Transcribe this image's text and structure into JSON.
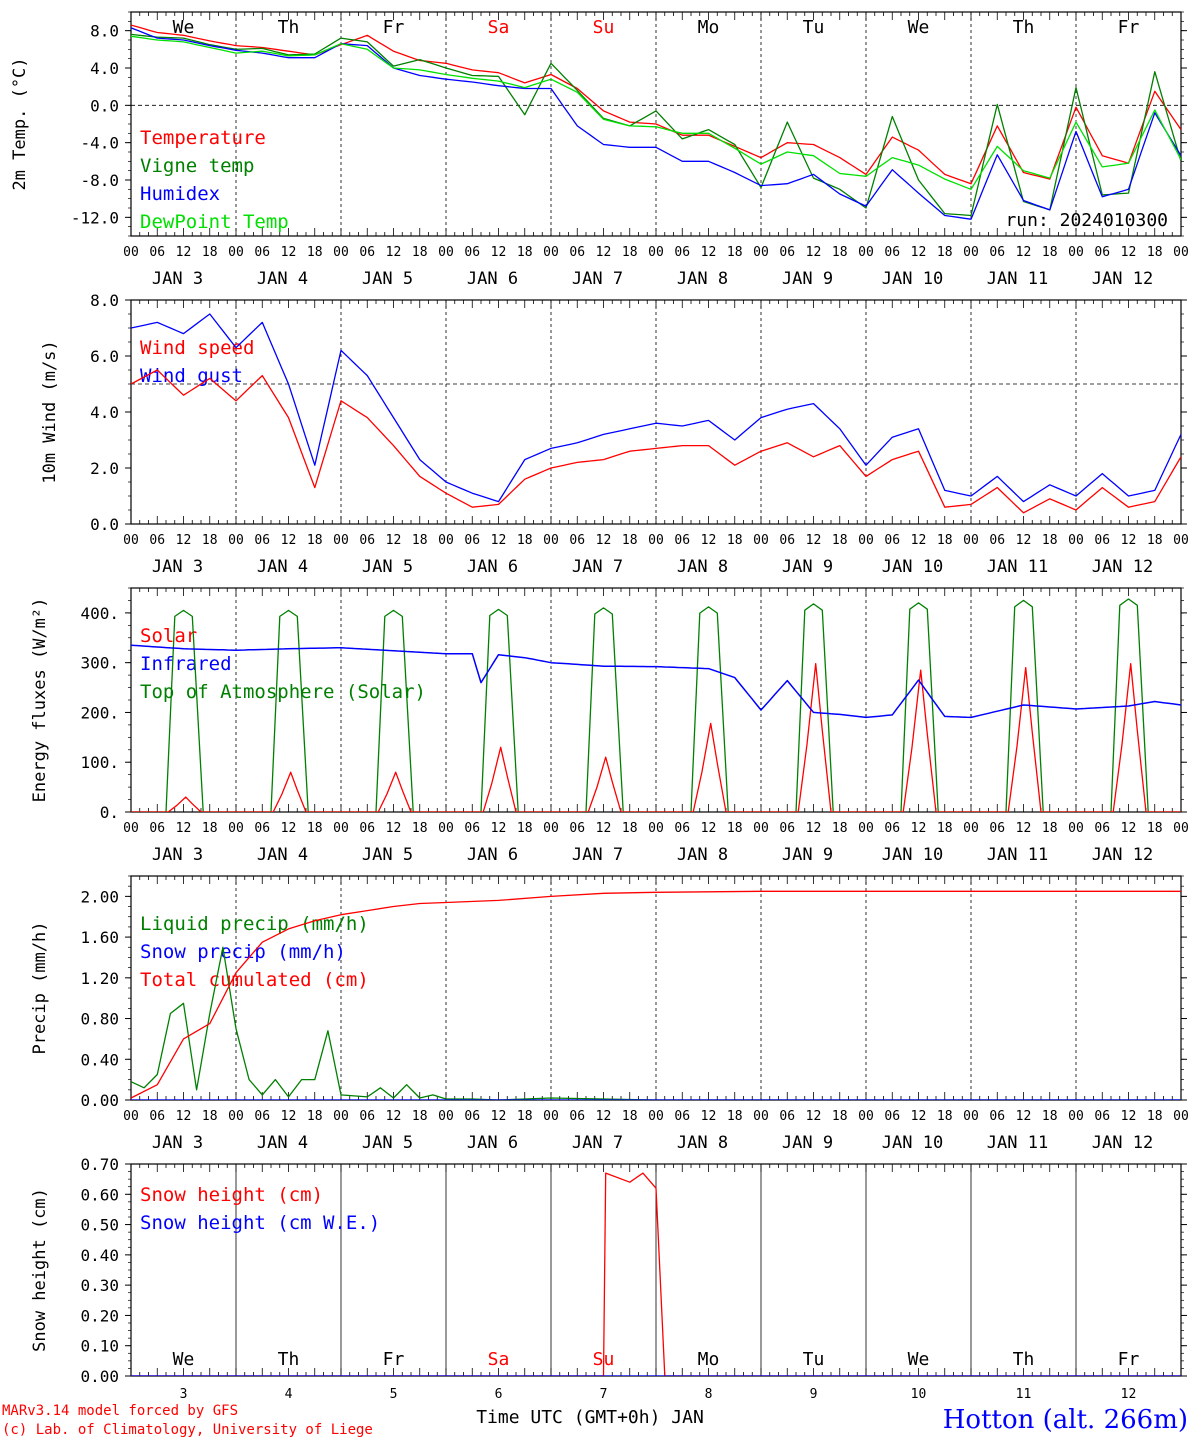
{
  "colors": {
    "red": "#ff0000",
    "green": "#008000",
    "blue": "#0000ff",
    "lime": "#00e000",
    "black": "#000000"
  },
  "weekdays": [
    {
      "label": "We",
      "color": "#000000"
    },
    {
      "label": "Th",
      "color": "#000000"
    },
    {
      "label": "Fr",
      "color": "#000000"
    },
    {
      "label": "Sa",
      "color": "#ff0000"
    },
    {
      "label": "Su",
      "color": "#ff0000"
    },
    {
      "label": "Mo",
      "color": "#000000"
    },
    {
      "label": "Tu",
      "color": "#000000"
    },
    {
      "label": "We",
      "color": "#000000"
    },
    {
      "label": "Th",
      "color": "#000000"
    },
    {
      "label": "Fr",
      "color": "#000000"
    }
  ],
  "hour_labels": [
    "00",
    "06",
    "12",
    "18"
  ],
  "date_labels": [
    "JAN  3",
    "JAN  4",
    "JAN  5",
    "JAN  6",
    "JAN  7",
    "JAN  8",
    "JAN  9",
    "JAN 10",
    "JAN 11",
    "JAN 12"
  ],
  "footer_day_numbers": [
    "3",
    "4",
    "5",
    "6",
    "7",
    "8",
    "9",
    "10",
    "11",
    "12"
  ],
  "footer": {
    "xlabel": "Time UTC (GMT+0h) JAN",
    "model_line": "MARv3.14 model forced by GFS",
    "copyright_line": "(c) Lab. of Climatology, University of Liege",
    "station": "Hotton (alt. 266m)"
  },
  "chart_data": [
    {
      "type": "line",
      "ylabel": "2m Temp. (°C)",
      "ylim": [
        -14,
        10
      ],
      "yticks": [
        8,
        4,
        0,
        -4,
        -8,
        -12
      ],
      "ytick_labels": [
        "8.0",
        "4.0",
        "0.0",
        "-4.0",
        "-8.0",
        "-12.0"
      ],
      "ref_line": 0,
      "annotation": "run: 2024010300",
      "legend": [
        {
          "label": "Temperature",
          "color": "#ff0000"
        },
        {
          "label": "Vigne temp",
          "color": "#008000"
        },
        {
          "label": "Humidex",
          "color": "#0000ff"
        },
        {
          "label": "DewPoint Temp",
          "color": "#00e000"
        }
      ],
      "x_hours": [
        0,
        6,
        12,
        18,
        24,
        30,
        36,
        42,
        48,
        54,
        60,
        66,
        72,
        78,
        84,
        90,
        96,
        102,
        108,
        114,
        120,
        126,
        132,
        138,
        144,
        150,
        156,
        162,
        168,
        174,
        180,
        186,
        192,
        198,
        204,
        210,
        216,
        222,
        228,
        234,
        240
      ],
      "series": [
        {
          "name": "Temperature",
          "color": "#ff0000",
          "values": [
            8.6,
            7.8,
            7.5,
            6.9,
            6.4,
            6.2,
            5.8,
            5.4,
            6.5,
            7.5,
            5.8,
            4.8,
            4.5,
            3.8,
            3.5,
            2.4,
            3.3,
            1.8,
            -0.6,
            -1.8,
            -2.0,
            -3.2,
            -3.2,
            -4.4,
            -5.6,
            -4.0,
            -4.2,
            -5.6,
            -7.4,
            -3.4,
            -4.8,
            -7.4,
            -8.4,
            -2.2,
            -7.2,
            -7.9,
            -0.2,
            -5.4,
            -6.2,
            1.5,
            -2.6
          ]
        },
        {
          "name": "Vigne temp",
          "color": "#008000",
          "values": [
            7.6,
            7.3,
            7.2,
            6.5,
            6.0,
            6.1,
            5.4,
            5.5,
            7.2,
            6.8,
            4.2,
            4.9,
            4.0,
            3.2,
            3.1,
            -1.0,
            4.5,
            1.6,
            -1.4,
            -2.2,
            -0.6,
            -3.6,
            -2.6,
            -4.2,
            -8.8,
            -1.8,
            -7.8,
            -9.0,
            -11.0,
            -1.2,
            -8.0,
            -11.6,
            -11.8,
            0.1,
            -10.3,
            -11.2,
            1.9,
            -9.6,
            -9.4,
            3.6,
            -6.0
          ]
        },
        {
          "name": "Humidex",
          "color": "#0000ff",
          "values": [
            8.3,
            7.2,
            7.0,
            6.4,
            5.9,
            5.6,
            5.1,
            5.1,
            6.6,
            6.4,
            4.0,
            3.2,
            2.8,
            2.5,
            2.1,
            1.8,
            1.8,
            -2.2,
            -4.2,
            -4.5,
            -4.5,
            -6.0,
            -6.0,
            -7.2,
            -8.6,
            -8.4,
            -7.4,
            -9.5,
            -10.8,
            -6.9,
            -9.4,
            -11.8,
            -12.2,
            -5.3,
            -10.2,
            -11.2,
            -2.8,
            -9.8,
            -9.0,
            -0.8,
            -5.4
          ]
        },
        {
          "name": "DewPoint Temp",
          "color": "#00e000",
          "values": [
            7.4,
            7.0,
            6.8,
            6.2,
            5.6,
            5.8,
            5.3,
            5.4,
            6.6,
            6.0,
            4.0,
            3.8,
            3.3,
            2.9,
            2.6,
            1.9,
            2.8,
            1.4,
            -1.5,
            -2.2,
            -2.3,
            -3.0,
            -3.0,
            -4.6,
            -6.3,
            -5.0,
            -5.4,
            -7.3,
            -7.6,
            -5.6,
            -6.4,
            -7.9,
            -9.0,
            -4.4,
            -7.0,
            -7.8,
            -1.8,
            -6.6,
            -6.2,
            -0.5,
            -5.8
          ]
        }
      ]
    },
    {
      "type": "line",
      "ylabel": "10m Wind (m/s)",
      "ylim": [
        0,
        8
      ],
      "yticks": [
        0,
        2,
        4,
        6,
        8
      ],
      "ytick_labels": [
        "0.0",
        "2.0",
        "4.0",
        "6.0",
        "8.0"
      ],
      "ref_line": 5,
      "legend": [
        {
          "label": "Wind speed",
          "color": "#ff0000"
        },
        {
          "label": "Wind gust",
          "color": "#0000ff"
        }
      ],
      "x_hours": [
        0,
        6,
        12,
        18,
        24,
        30,
        36,
        42,
        48,
        54,
        60,
        66,
        72,
        78,
        84,
        90,
        96,
        102,
        108,
        114,
        120,
        126,
        132,
        138,
        144,
        150,
        156,
        162,
        168,
        174,
        180,
        186,
        192,
        198,
        204,
        210,
        216,
        222,
        228,
        234,
        240
      ],
      "series": [
        {
          "name": "Wind speed",
          "color": "#ff0000",
          "values": [
            5.0,
            5.5,
            4.6,
            5.2,
            4.4,
            5.3,
            3.8,
            1.3,
            4.4,
            3.8,
            2.8,
            1.7,
            1.1,
            0.6,
            0.7,
            1.6,
            2.0,
            2.2,
            2.3,
            2.6,
            2.7,
            2.8,
            2.8,
            2.1,
            2.6,
            2.9,
            2.4,
            2.8,
            1.7,
            2.3,
            2.6,
            0.6,
            0.7,
            1.3,
            0.4,
            0.9,
            0.5,
            1.3,
            0.6,
            0.8,
            2.4
          ]
        },
        {
          "name": "Wind gust",
          "color": "#0000ff",
          "values": [
            7.0,
            7.2,
            6.8,
            7.5,
            6.3,
            7.2,
            5.0,
            2.1,
            6.2,
            5.3,
            3.8,
            2.3,
            1.5,
            1.1,
            0.8,
            2.3,
            2.7,
            2.9,
            3.2,
            3.4,
            3.6,
            3.5,
            3.7,
            3.0,
            3.8,
            4.1,
            4.3,
            3.4,
            2.1,
            3.1,
            3.4,
            1.2,
            1.0,
            1.7,
            0.8,
            1.4,
            1.0,
            1.8,
            1.0,
            1.2,
            3.2
          ]
        }
      ]
    },
    {
      "type": "line",
      "ylabel": "Energy fluxes (W/m²)",
      "ylim": [
        0,
        450
      ],
      "yticks": [
        0,
        100,
        200,
        300,
        400
      ],
      "ytick_labels": [
        "0.",
        "100.",
        "200.",
        "300.",
        "400."
      ],
      "legend": [
        {
          "label": "Solar",
          "color": "#ff0000"
        },
        {
          "label": "Infrared",
          "color": "#0000ff"
        },
        {
          "label": "Top of Atmosphere (Solar)",
          "color": "#008000"
        }
      ],
      "days": [
        "JAN 3",
        "JAN 4",
        "JAN 5",
        "JAN 6",
        "JAN 7",
        "JAN 8",
        "JAN 9",
        "JAN 10",
        "JAN 11",
        "JAN 12"
      ],
      "toa_peak": [
        405,
        405,
        405,
        407,
        410,
        412,
        418,
        420,
        425,
        428
      ],
      "solar_peak": [
        30,
        80,
        80,
        130,
        110,
        178,
        298,
        285,
        290,
        298
      ],
      "infrared": {
        "x_hours": [
          0,
          12,
          24,
          36,
          48,
          60,
          72,
          78,
          80,
          84,
          90,
          96,
          108,
          120,
          132,
          138,
          144,
          150,
          156,
          162,
          168,
          174,
          180,
          186,
          192,
          204,
          216,
          228,
          234,
          240
        ],
        "values": [
          335,
          328,
          325,
          328,
          330,
          324,
          318,
          318,
          260,
          316,
          310,
          300,
          293,
          292,
          288,
          270,
          205,
          264,
          200,
          196,
          190,
          195,
          265,
          192,
          190,
          215,
          207,
          213,
          222,
          215
        ]
      },
      "series": [
        {
          "name": "Solar",
          "color": "#ff0000"
        },
        {
          "name": "Infrared",
          "color": "#0000ff"
        },
        {
          "name": "Top of Atmosphere (Solar)",
          "color": "#008000"
        }
      ]
    },
    {
      "type": "line",
      "ylabel": "Precip (mm/h)",
      "ylim": [
        0,
        2.2
      ],
      "yticks": [
        0,
        0.4,
        0.8,
        1.2,
        1.6,
        2.0
      ],
      "ytick_labels": [
        "0.00",
        "0.40",
        "0.80",
        "1.20",
        "1.60",
        "2.00"
      ],
      "legend": [
        {
          "label": "Liquid precip (mm/h)",
          "color": "#008000"
        },
        {
          "label": "Snow precip (mm/h)",
          "color": "#0000ff"
        },
        {
          "label": "Total cumulated (cm)",
          "color": "#ff0000"
        }
      ],
      "series": [
        {
          "name": "Liquid precip (mm/h)",
          "color": "#008000",
          "x_hours": [
            0,
            3,
            6,
            9,
            12,
            15,
            18,
            21,
            24,
            27,
            30,
            33,
            36,
            39,
            42,
            45,
            48,
            51,
            54,
            57,
            60,
            63,
            66,
            69,
            72,
            78,
            84,
            96,
            108,
            120,
            240
          ],
          "values": [
            0.18,
            0.12,
            0.25,
            0.85,
            0.95,
            0.1,
            0.85,
            1.5,
            0.7,
            0.2,
            0.05,
            0.2,
            0.03,
            0.2,
            0.2,
            0.68,
            0.05,
            0.04,
            0.03,
            0.12,
            0.02,
            0.15,
            0.02,
            0.05,
            0.01,
            0.01,
            0.0,
            0.02,
            0.01,
            0.0,
            0.0
          ]
        },
        {
          "name": "Snow precip (mm/h)",
          "color": "#0000ff",
          "x_hours": [
            0,
            240
          ],
          "values": [
            0.0,
            0.0
          ]
        },
        {
          "name": "Total cumulated (cm)",
          "color": "#ff0000",
          "x_hours": [
            0,
            6,
            12,
            18,
            24,
            30,
            36,
            42,
            48,
            54,
            60,
            66,
            72,
            84,
            96,
            108,
            120,
            144,
            168,
            240
          ],
          "values": [
            0.02,
            0.15,
            0.6,
            0.75,
            1.25,
            1.55,
            1.68,
            1.76,
            1.82,
            1.86,
            1.9,
            1.93,
            1.94,
            1.96,
            2.0,
            2.03,
            2.04,
            2.05,
            2.05,
            2.05
          ]
        }
      ]
    },
    {
      "type": "line",
      "ylabel": "Snow height (cm)",
      "ylim": [
        0,
        0.7
      ],
      "yticks": [
        0,
        0.1,
        0.2,
        0.3,
        0.4,
        0.5,
        0.6,
        0.7
      ],
      "ytick_labels": [
        "0.00",
        "0.10",
        "0.20",
        "0.30",
        "0.40",
        "0.50",
        "0.60",
        "0.70"
      ],
      "legend": [
        {
          "label": "Snow height (cm)",
          "color": "#ff0000"
        },
        {
          "label": "Snow height (cm W.E.)",
          "color": "#0000ff"
        }
      ],
      "series": [
        {
          "name": "Snow height (cm)",
          "color": "#ff0000",
          "x_hours": [
            0,
            108,
            108.5,
            114,
            117,
            120,
            122,
            124,
            240
          ],
          "values": [
            0,
            0,
            0.67,
            0.64,
            0.67,
            0.62,
            0.0,
            0,
            0
          ]
        },
        {
          "name": "Snow height (cm W.E.)",
          "color": "#0000ff",
          "x_hours": [
            0,
            240
          ],
          "values": [
            0,
            0
          ]
        }
      ]
    }
  ]
}
